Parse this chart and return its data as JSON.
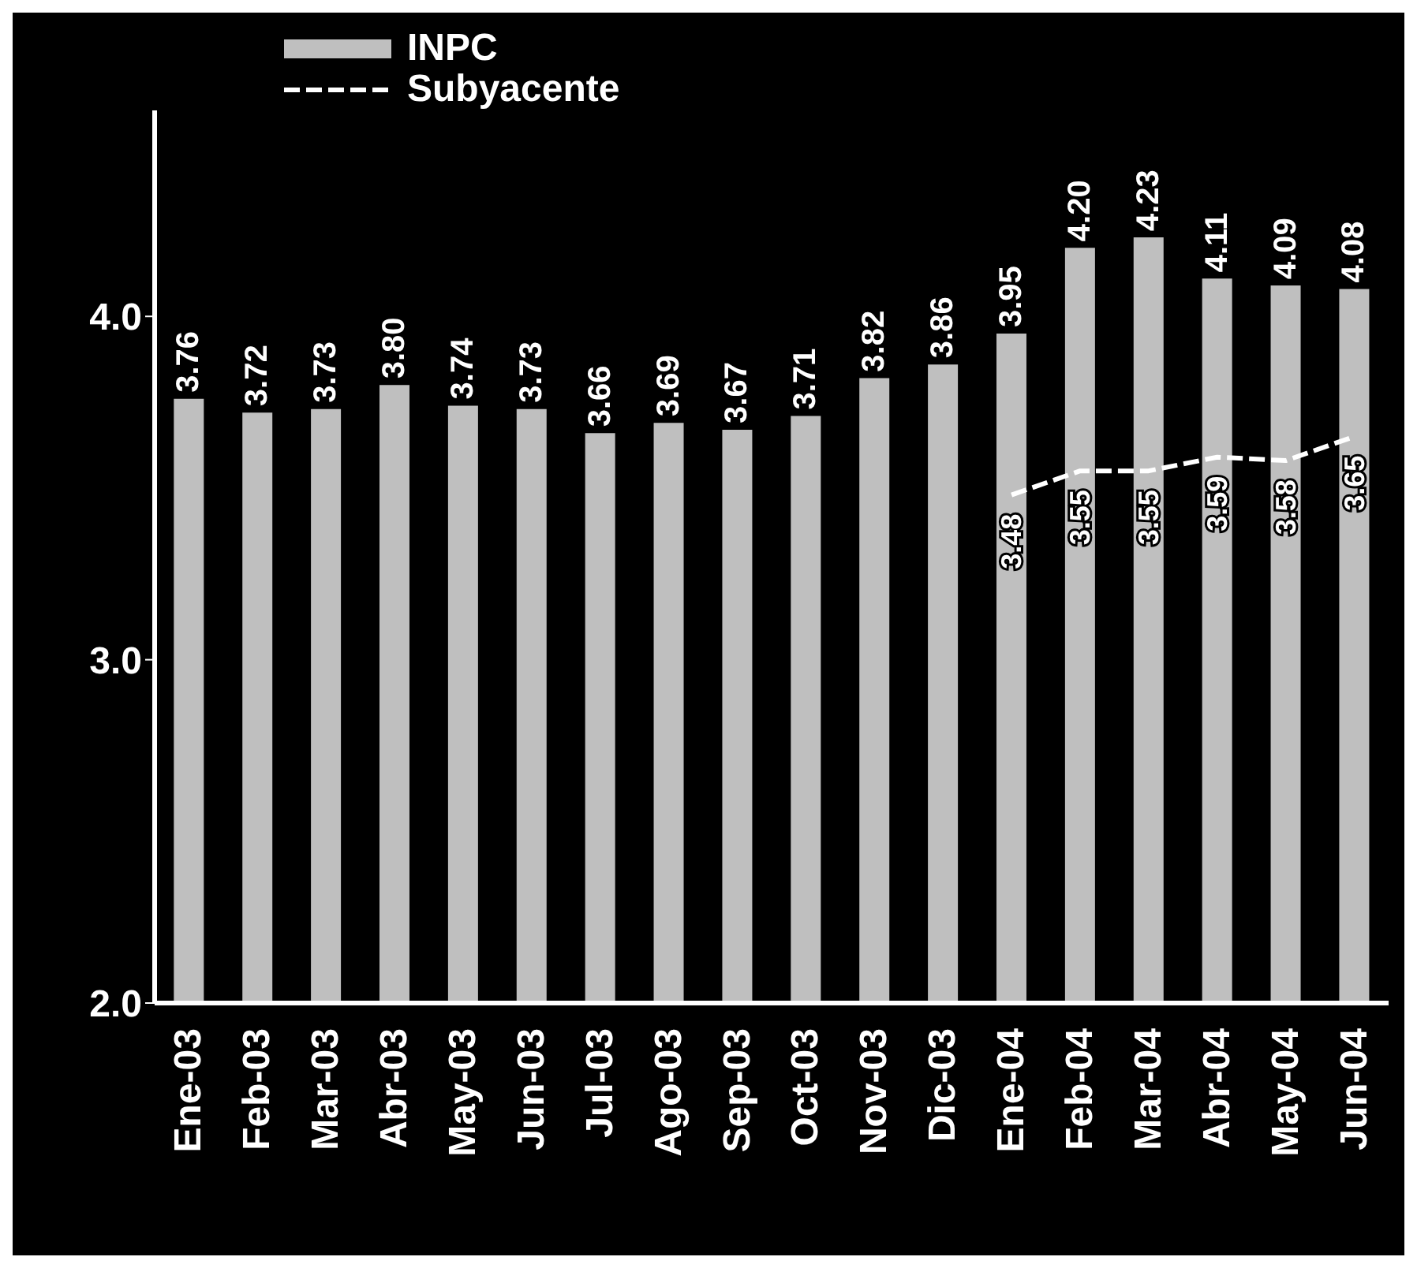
{
  "chart_data": {
    "type": "bar",
    "categories": [
      "Ene-03",
      "Feb-03",
      "Mar-03",
      "Abr-03",
      "May-03",
      "Jun-03",
      "Jul-03",
      "Ago-03",
      "Sep-03",
      "Oct-03",
      "Nov-03",
      "Dic-03",
      "Ene-04",
      "Feb-04",
      "Mar-04",
      "Abr-04",
      "May-04",
      "Jun-04"
    ],
    "series": [
      {
        "name": "INPC",
        "color": "#bfbfbf",
        "values": [
          3.76,
          3.72,
          3.73,
          3.8,
          3.74,
          3.73,
          3.66,
          3.69,
          3.67,
          3.71,
          3.82,
          3.86,
          3.95,
          4.2,
          4.23,
          4.11,
          4.09,
          4.08
        ],
        "value_labels": [
          "3.76",
          "3.72",
          "3.73",
          "3.80",
          "3.74",
          "3.73",
          "3.66",
          "3.69",
          "3.67",
          "3.71",
          "3.82",
          "3.86",
          "3.95",
          "4.20",
          "4.23",
          "4.11",
          "4.09",
          "4.08"
        ]
      },
      {
        "name": "Subyacente",
        "type": "line",
        "color": "#ffffff",
        "values": [
          null,
          null,
          null,
          null,
          null,
          null,
          null,
          null,
          null,
          null,
          null,
          null,
          3.48,
          3.55,
          3.55,
          3.59,
          3.58,
          3.65
        ],
        "value_labels": [
          null,
          null,
          null,
          null,
          null,
          null,
          null,
          null,
          null,
          null,
          null,
          null,
          "3.48",
          "3.55",
          "3.55",
          "3.59",
          "3.58",
          "3.65"
        ]
      }
    ],
    "ylim": [
      2,
      4.6
    ],
    "yticks": [
      {
        "value": 2,
        "label": "2.0"
      },
      {
        "value": 3,
        "label": "3.0"
      },
      {
        "value": 4,
        "label": "4.0"
      }
    ],
    "legend": "top left",
    "line_style": "dashed",
    "marker": "none"
  }
}
